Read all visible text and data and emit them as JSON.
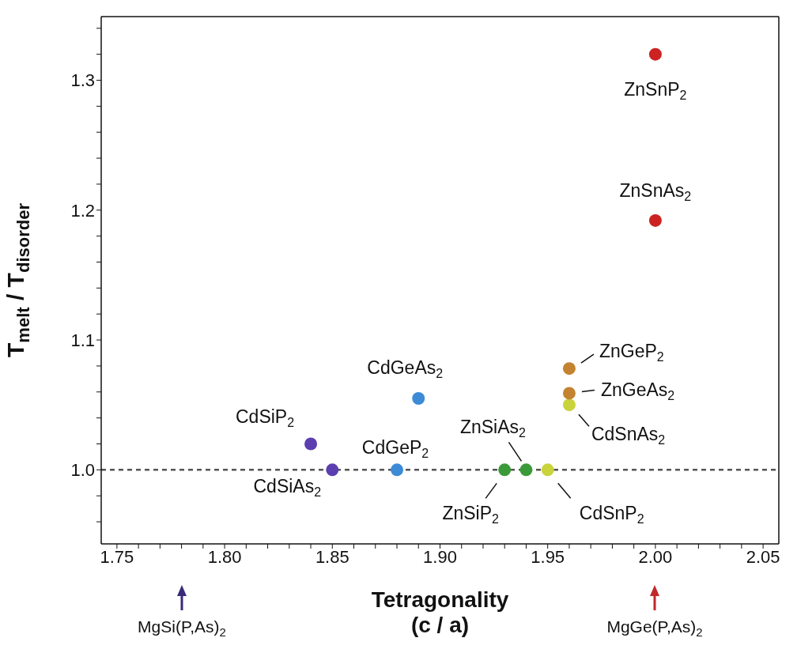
{
  "chart_data": {
    "type": "scatter",
    "xlabel": "Tetragonality\n(c / a)",
    "ylabel": "T$_{melt}$ / T$_{disorder}$",
    "xlim": [
      1.7427,
      2.0573
    ],
    "ylim": [
      0.943,
      1.349
    ],
    "xticks": [
      1.75,
      {
        "value": 1.76,
        "label": null
      },
      {
        "value": 1.77,
        "label": null
      },
      {
        "value": 1.78,
        "label": null
      },
      {
        "value": 1.79,
        "label": null
      },
      {
        "value": 1.8,
        "label": "1.80"
      },
      {
        "value": 1.81,
        "label": null
      },
      {
        "value": 1.82,
        "label": null
      },
      {
        "value": 1.83,
        "label": null
      },
      {
        "value": 1.84,
        "label": null
      },
      1.85,
      {
        "value": 1.86,
        "label": null
      },
      {
        "value": 1.87,
        "label": null
      },
      {
        "value": 1.88,
        "label": null
      },
      {
        "value": 1.89,
        "label": null
      },
      {
        "value": 1.9,
        "label": "1.90"
      },
      {
        "value": 1.91,
        "label": null
      },
      {
        "value": 1.92,
        "label": null
      },
      {
        "value": 1.93,
        "label": null
      },
      {
        "value": 1.94,
        "label": null
      },
      1.95,
      {
        "value": 1.96,
        "label": null
      },
      {
        "value": 1.97,
        "label": null
      },
      {
        "value": 1.98,
        "label": null
      },
      {
        "value": 1.99,
        "label": null
      },
      {
        "value": 2,
        "label": "2.00"
      },
      {
        "value": 2.01,
        "label": null
      },
      {
        "value": 2.02,
        "label": null
      },
      {
        "value": 2.03,
        "label": null
      },
      {
        "value": 2.04,
        "label": null
      },
      2.05
    ],
    "yticks": [
      {
        "value": 0.96,
        "label": null
      },
      {
        "value": 0.98,
        "label": null
      },
      {
        "value": 1,
        "label": "1.0"
      },
      {
        "value": 1.02,
        "label": null
      },
      {
        "value": 1.04,
        "label": null
      },
      {
        "value": 1.06,
        "label": null
      },
      {
        "value": 1.08,
        "label": null
      },
      1.1,
      {
        "value": 1.12,
        "label": null
      },
      {
        "value": 1.14,
        "label": null
      },
      {
        "value": 1.16,
        "label": null
      },
      {
        "value": 1.18,
        "label": null
      },
      1.2,
      {
        "value": 1.22,
        "label": null
      },
      {
        "value": 1.24,
        "label": null
      },
      {
        "value": 1.26,
        "label": null
      },
      {
        "value": 1.28,
        "label": null
      },
      1.3,
      {
        "value": 1.32,
        "label": null
      },
      {
        "value": 1.34,
        "label": null
      }
    ],
    "series": [
      {
        "color": "#5b3fb0",
        "x": [
          1.84,
          1.85
        ],
        "values": [
          1.02,
          1.0
        ]
      },
      {
        "color": "#3d8bd6",
        "x": [
          1.88,
          1.89
        ],
        "values": [
          1.0,
          1.055
        ]
      },
      {
        "color": "#3a9a3a",
        "x": [
          1.93,
          1.94
        ],
        "values": [
          1.0,
          1.0
        ]
      },
      {
        "color": "#c9d43c",
        "x": [
          1.95,
          1.96
        ],
        "values": [
          1.0,
          1.05
        ]
      },
      {
        "color": "#c48330",
        "x": [
          1.96,
          1.96
        ],
        "values": [
          1.078,
          1.059
        ]
      },
      {
        "color": "#cc2222",
        "x": [
          2.0,
          2.0
        ],
        "values": [
          1.192,
          1.32
        ]
      }
    ],
    "ref_lines": [
      {
        "axis": "y",
        "value": 1.0,
        "color": "#555555",
        "line_style": "dashed"
      }
    ],
    "marker": "circle",
    "annotations": [
      {
        "text": "ZnSnP$_{2}$",
        "x": 2.0,
        "y": 1.32
      },
      {
        "text": "ZnSnAs$_{2}$",
        "x": 2.0,
        "y": 1.192
      },
      {
        "text": "ZnGeP$_{2}$",
        "x": 1.96,
        "y": 1.078
      },
      {
        "text": "ZnGeAs$_{2}$",
        "x": 1.96,
        "y": 1.059
      },
      {
        "text": "CdSnAs$_{2}$",
        "x": 1.96,
        "y": 1.05
      },
      {
        "text": "CdGeAs$_{2}$",
        "x": 1.89,
        "y": 1.055
      },
      {
        "text": "CdSiP$_{2}$",
        "x": 1.84,
        "y": 1.02
      },
      {
        "text": "CdSiAs$_{2}$",
        "x": 1.85,
        "y": 1.0
      },
      {
        "text": "CdGeP$_{2}$",
        "x": 1.88,
        "y": 1.0
      },
      {
        "text": "ZnSiAs$_{2}$",
        "x": 1.94,
        "y": 1.0
      },
      {
        "text": "ZnSiP$_{2}$",
        "x": 1.93,
        "y": 1.0
      },
      {
        "text": "CdSnP$_{2}$",
        "x": 1.95,
        "y": 1.0
      },
      "MgSi(P,As)$_{2}$",
      "MgGe(P,As)$_{2}$"
    ]
  }
}
